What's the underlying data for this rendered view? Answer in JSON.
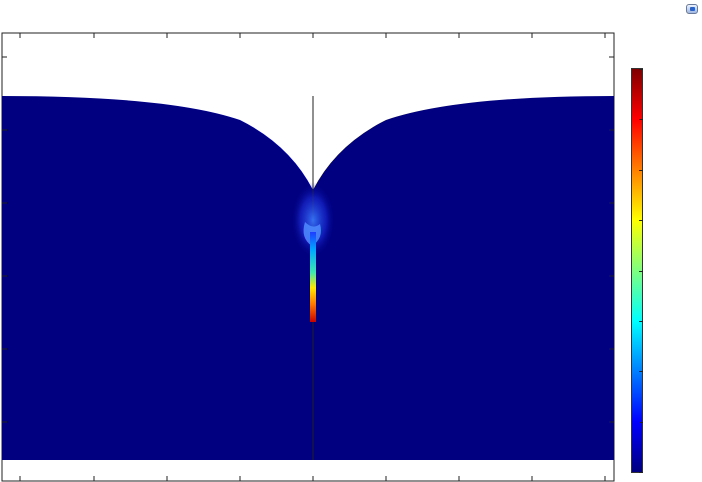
{
  "figure": {
    "colormap": [
      "#00007f",
      "#0000ff",
      "#007fff",
      "#00ffff",
      "#7fff7f",
      "#ffff00",
      "#ff7f00",
      "#ff0000",
      "#7f0000"
    ],
    "background_field_color": "#000080",
    "frame_color": "#222222",
    "colorbar_ticks": 8,
    "corner_icon": "figure-window-icon"
  }
}
